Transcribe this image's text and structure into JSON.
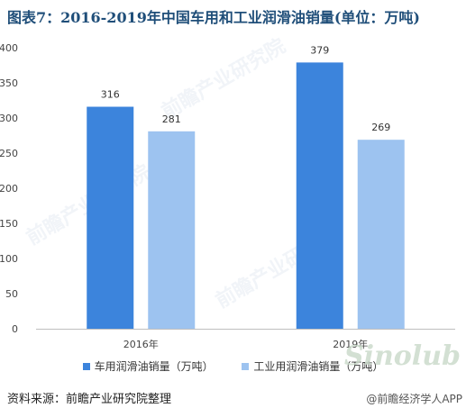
{
  "title": "图表7：2016-2019年中国车用和工业润滑油销量(单位：万吨)",
  "source": "资料来源：前瞻产业研究院整理",
  "footer_brand": "前瞻经济学人APP",
  "watermark": {
    "text": "前瞻产业研究院",
    "logo": "Sinolub"
  },
  "colors": {
    "series1": "#3c84dc",
    "series2": "#9dc3f0",
    "axis": "#bfbfbf",
    "title": "#1f4e79"
  },
  "chart_data": {
    "type": "bar",
    "title": "图表7：2016-2019年中国车用和工业润滑油销量(单位：万吨)",
    "categories": [
      "2016年",
      "2019年"
    ],
    "series": [
      {
        "name": "车用润滑油销量（万吨）",
        "values": [
          316,
          379
        ]
      },
      {
        "name": "工业用润滑油销量（万吨）",
        "values": [
          281,
          269
        ]
      }
    ],
    "ylim": [
      0,
      400
    ],
    "yticks": [
      0,
      50,
      100,
      150,
      200,
      250,
      300,
      350,
      400
    ],
    "grid": false,
    "legend": "bottom"
  }
}
